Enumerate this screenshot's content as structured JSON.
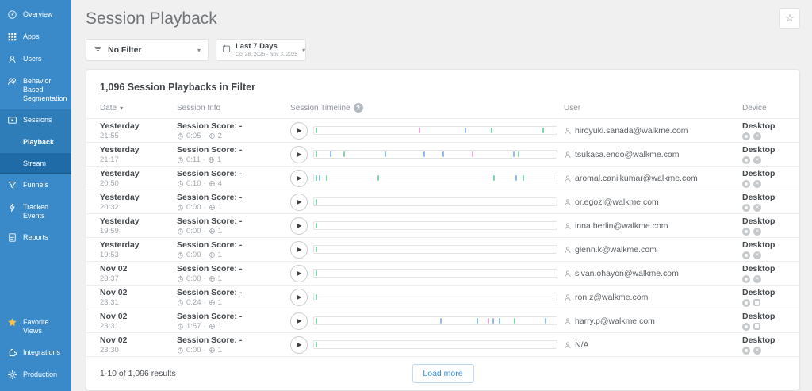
{
  "colors": {
    "sidebar_bg": "#3a8aca",
    "sidebar_section_bg": "#2e7db9",
    "sidebar_active_bg": "#1f6ba7",
    "accent_blue": "#3a8fd9",
    "star_yellow": "#f6c344",
    "tick_green": "#7fd7a9",
    "tick_blue": "#8fbdf2",
    "tick_pink": "#efa9de"
  },
  "sidebar": {
    "items": [
      {
        "label": "Overview",
        "icon": "gauge-icon"
      },
      {
        "label": "Apps",
        "icon": "apps-grid-icon"
      },
      {
        "label": "Users",
        "icon": "user-icon"
      },
      {
        "label": "Behavior Based Segmentation",
        "icon": "segmentation-icon"
      },
      {
        "label": "Sessions",
        "icon": "sessions-icon",
        "group": true
      },
      {
        "label": "Playback",
        "sub": true,
        "selected": true
      },
      {
        "label": "Stream",
        "sub": true,
        "active_bg": true
      },
      {
        "label": "Funnels",
        "icon": "funnel-icon"
      },
      {
        "label": "Tracked Events",
        "icon": "lightning-icon"
      },
      {
        "label": "Reports",
        "icon": "report-icon"
      }
    ],
    "bottom_items": [
      {
        "label": "Favorite Views",
        "icon": "star-icon"
      },
      {
        "label": "Integrations",
        "icon": "puzzle-icon"
      },
      {
        "label": "Production",
        "icon": "gear-icon"
      }
    ]
  },
  "header": {
    "title": "Session Playback"
  },
  "filters": {
    "filter": {
      "label": "No Filter"
    },
    "date": {
      "label": "Last 7 Days",
      "range": "Oct 28, 2025 - Nov 3, 2025"
    }
  },
  "table": {
    "summary": "1,096 Session Playbacks in Filter",
    "columns": {
      "date": "Date",
      "info": "Session Info",
      "timeline": "Session Timeline",
      "user": "User",
      "device": "Device"
    },
    "rows": [
      {
        "date": "Yesterday",
        "time": "21:55",
        "score": "Session Score: -",
        "duration": "0:05",
        "pages": "2",
        "user": "hiroyuki.sanada@walkme.com",
        "device": "Desktop",
        "os": "circle",
        "ticks": [
          [
            0.5,
            "green"
          ],
          [
            43,
            "pink"
          ],
          [
            62,
            "blue"
          ],
          [
            73,
            "green"
          ],
          [
            94,
            "green"
          ]
        ]
      },
      {
        "date": "Yesterday",
        "time": "21:17",
        "score": "Session Score: -",
        "duration": "0:11",
        "pages": "1",
        "user": "tsukasa.endo@walkme.com",
        "device": "Desktop",
        "os": "circle",
        "ticks": [
          [
            0.5,
            "green"
          ],
          [
            6.6,
            "blue"
          ],
          [
            12,
            "green"
          ],
          [
            29,
            "blue"
          ],
          [
            45,
            "blue"
          ],
          [
            53,
            "blue"
          ],
          [
            65,
            "pink"
          ],
          [
            82,
            "blue"
          ],
          [
            84,
            "green"
          ]
        ]
      },
      {
        "date": "Yesterday",
        "time": "20:50",
        "score": "Session Score: -",
        "duration": "0:10",
        "pages": "4",
        "user": "aromal.canilkumar@walkme.com",
        "device": "Desktop",
        "os": "circle",
        "ticks": [
          [
            0.5,
            "green"
          ],
          [
            2,
            "blue"
          ],
          [
            5,
            "green"
          ],
          [
            26,
            "green"
          ],
          [
            74,
            "green"
          ],
          [
            83,
            "blue"
          ],
          [
            86,
            "green"
          ]
        ]
      },
      {
        "date": "Yesterday",
        "time": "20:32",
        "score": "Session Score: -",
        "duration": "0:00",
        "pages": "1",
        "user": "or.egozi@walkme.com",
        "device": "Desktop",
        "os": "circle",
        "ticks": [
          [
            0.5,
            "green"
          ]
        ]
      },
      {
        "date": "Yesterday",
        "time": "19:59",
        "score": "Session Score: -",
        "duration": "0:00",
        "pages": "1",
        "user": "inna.berlin@walkme.com",
        "device": "Desktop",
        "os": "circle",
        "ticks": [
          [
            0.5,
            "green"
          ]
        ]
      },
      {
        "date": "Yesterday",
        "time": "19:53",
        "score": "Session Score: -",
        "duration": "0:00",
        "pages": "1",
        "user": "glenn.k@walkme.com",
        "device": "Desktop",
        "os": "circle",
        "ticks": [
          [
            0.5,
            "green"
          ]
        ]
      },
      {
        "date": "Nov 02",
        "time": "23:37",
        "score": "Session Score: -",
        "duration": "0:00",
        "pages": "1",
        "user": "sivan.ohayon@walkme.com",
        "device": "Desktop",
        "os": "circle",
        "ticks": [
          [
            0.5,
            "green"
          ]
        ]
      },
      {
        "date": "Nov 02",
        "time": "23:31",
        "score": "Session Score: -",
        "duration": "0:24",
        "pages": "1",
        "user": "ron.z@walkme.com",
        "device": "Desktop",
        "os": "square",
        "ticks": [
          [
            0.5,
            "green"
          ]
        ]
      },
      {
        "date": "Nov 02",
        "time": "23:31",
        "score": "Session Score: -",
        "duration": "1:57",
        "pages": "1",
        "user": "harry.p@walkme.com",
        "device": "Desktop",
        "os": "square",
        "ticks": [
          [
            0.5,
            "green"
          ],
          [
            52,
            "blue"
          ],
          [
            67,
            "blue"
          ],
          [
            71.5,
            "pink"
          ],
          [
            73.5,
            "blue"
          ],
          [
            76,
            "blue"
          ],
          [
            82.5,
            "green"
          ],
          [
            95,
            "blue"
          ]
        ]
      },
      {
        "date": "Nov 02",
        "time": "23:30",
        "score": "Session Score: -",
        "duration": "0:00",
        "pages": "1",
        "user": "N/A",
        "device": "Desktop",
        "os": "circle",
        "ticks": [
          [
            0.5,
            "green"
          ]
        ]
      }
    ],
    "footer": {
      "results": "1-10 of 1,096 results",
      "load_more": "Load more"
    }
  }
}
